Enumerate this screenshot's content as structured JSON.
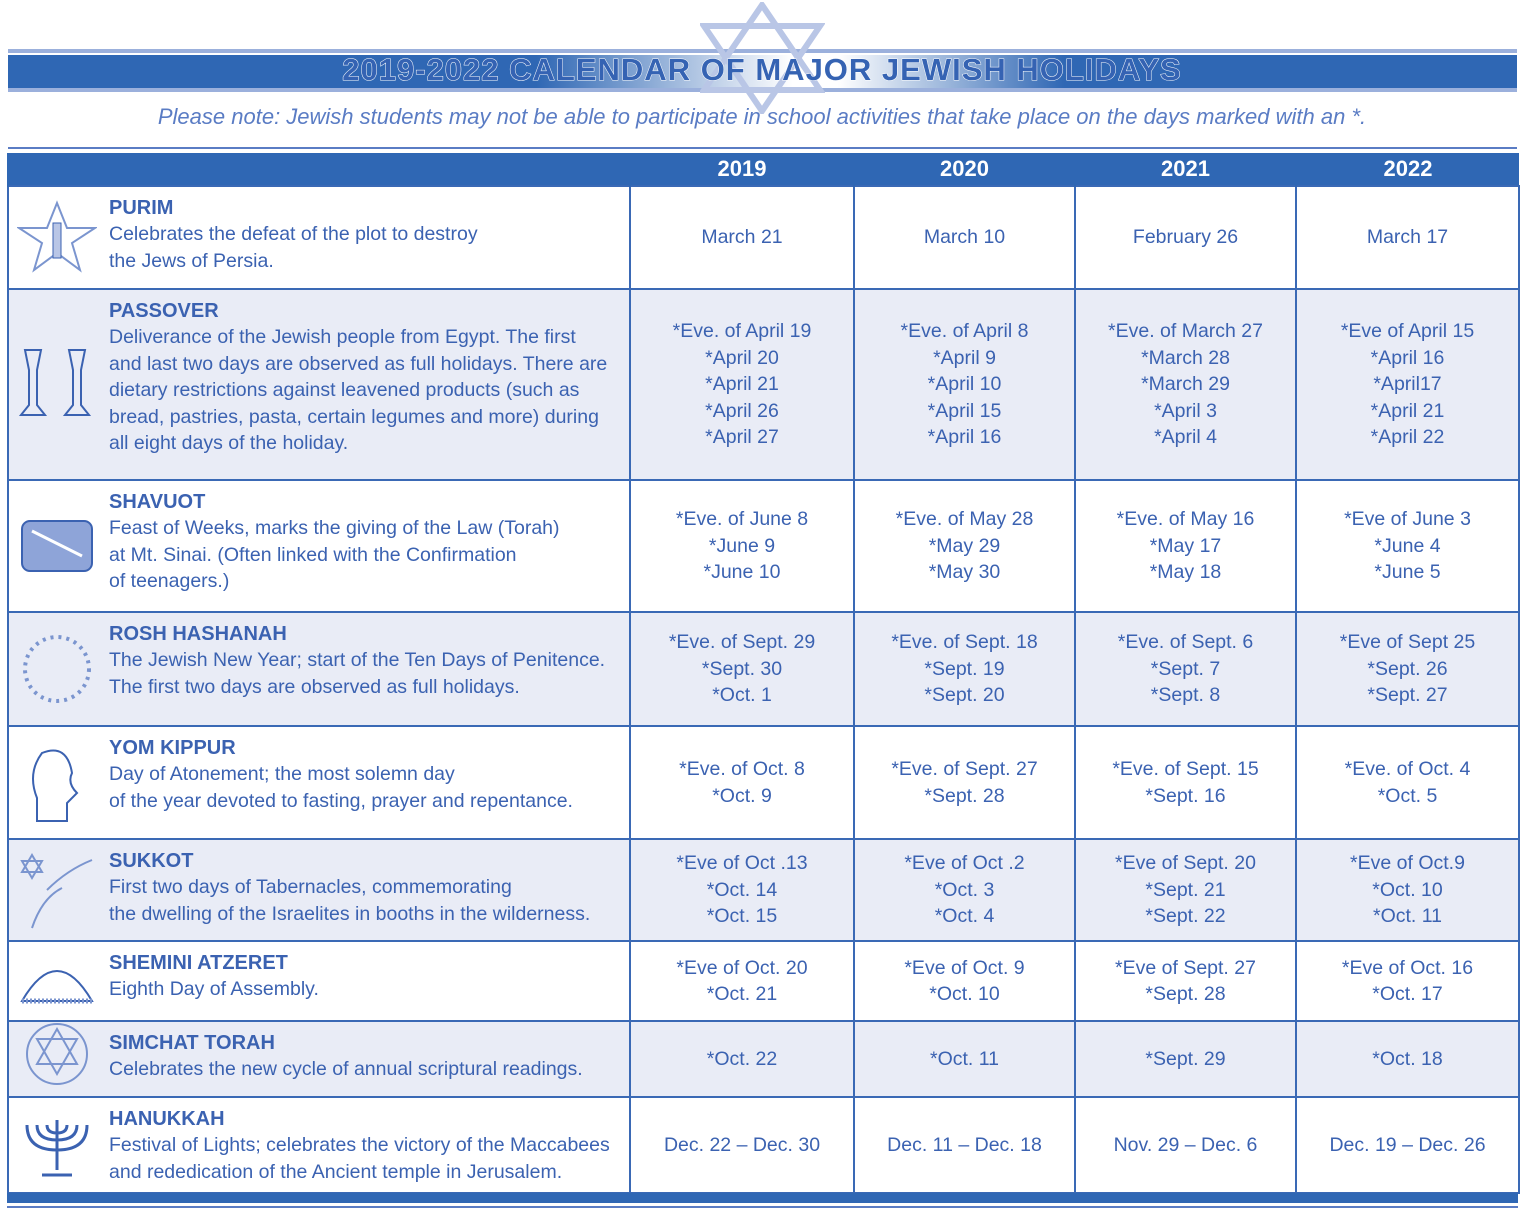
{
  "header": {
    "title": "2019-2022 CALENDAR OF MAJOR JEWISH HOLIDAYS",
    "note": "Please note: Jewish students may not be able to participate in school activities that take place on the days marked with an *."
  },
  "columns": [
    "",
    "2019",
    "2020",
    "2021",
    "2022"
  ],
  "colors": {
    "primary": "#2f67b4",
    "text": "#3b62b1",
    "row_shade": "#e9ecf6"
  },
  "holidays": [
    {
      "name": "PURIM",
      "icon": "star-candle-icon",
      "desc": [
        "Celebrates the defeat of the plot to destroy",
        "the Jews of Persia."
      ],
      "dates": [
        [
          "March 21"
        ],
        [
          "March 10"
        ],
        [
          "February  26"
        ],
        [
          "March 17"
        ]
      ]
    },
    {
      "name": "PASSOVER",
      "icon": "kiddush-cups-icon",
      "desc": [
        "Deliverance of the Jewish people from Egypt. The first",
        "and last two days are observed as full holidays. There are",
        "dietary restrictions against leavened products (such as",
        "bread, pastries, pasta, certain legumes and more) during",
        "all eight days of the holiday."
      ],
      "dates": [
        [
          "*Eve. of April 19",
          "*April 20",
          "*April 21",
          "*April 26",
          "*April 27"
        ],
        [
          "*Eve. of April 8",
          "*April 9",
          "*April 10",
          "*April 15",
          "*April 16"
        ],
        [
          "*Eve. of March 27",
          "*March 28",
          "*March 29",
          "*April 3",
          "*April 4"
        ],
        [
          "*Eve of April 15",
          "*April 16",
          "*April17",
          "*April 21",
          "*April 22"
        ]
      ]
    },
    {
      "name": "SHAVUOT",
      "icon": "torah-scroll-icon",
      "desc": [
        "Feast of Weeks, marks the giving of the Law (Torah)",
        "at Mt. Sinai. (Often linked with the Confirmation",
        "of teenagers.)"
      ],
      "dates": [
        [
          "*Eve. of June 8",
          "*June 9",
          "*June 10"
        ],
        [
          "*Eve. of May 28",
          "*May 29",
          "*May 30"
        ],
        [
          "*Eve. of May 16",
          "*May 17",
          "*May 18"
        ],
        [
          "*Eve of June 3",
          "*June 4",
          "*June 5"
        ]
      ]
    },
    {
      "name": "ROSH HASHANAH",
      "icon": "star-wreath-icon",
      "desc": [
        "The Jewish New Year; start of the Ten Days of Penitence.",
        "The first two days are observed as full holidays."
      ],
      "dates": [
        [
          "*Eve. of Sept. 29",
          "*Sept. 30",
          "*Oct. 1"
        ],
        [
          "*Eve. of Sept. 18",
          "*Sept. 19",
          "*Sept. 20"
        ],
        [
          "*Eve. of Sept. 6",
          "*Sept. 7",
          "*Sept. 8"
        ],
        [
          "*Eve of Sept 25",
          "*Sept. 26",
          "*Sept. 27"
        ]
      ]
    },
    {
      "name": "YOM KIPPUR",
      "icon": "praying-man-icon",
      "desc": [
        "Day of Atonement; the most solemn day",
        "of the year devoted to fasting, prayer and repentance."
      ],
      "dates": [
        [
          "*Eve. of Oct. 8",
          "*Oct. 9"
        ],
        [
          "*Eve. of Sept. 27",
          "*Sept. 28"
        ],
        [
          "*Eve. of Sept. 15",
          "*Sept. 16"
        ],
        [
          "*Eve. of Oct. 4",
          "*Oct. 5"
        ]
      ]
    },
    {
      "name": "SUKKOT",
      "icon": "star-branch-icon",
      "desc": [
        "First two days of Tabernacles, commemorating",
        "the dwelling of the Israelites in booths in the wilderness."
      ],
      "dates": [
        [
          "*Eve of Oct .13",
          "*Oct. 14",
          "*Oct. 15"
        ],
        [
          "*Eve of Oct .2",
          "*Oct. 3",
          "*Oct. 4"
        ],
        [
          "*Eve of Sept. 20",
          "*Sept. 21",
          "*Sept. 22"
        ],
        [
          "*Eve of Oct.9",
          "*Oct. 10",
          "*Oct. 11"
        ]
      ]
    },
    {
      "name": "SHEMINI ATZERET",
      "icon": "kippah-icon",
      "desc": [
        "Eighth Day of Assembly."
      ],
      "dates": [
        [
          "*Eve of Oct. 20",
          "*Oct. 21"
        ],
        [
          "*Eve of Oct. 9",
          "*Oct. 10"
        ],
        [
          "*Eve of Sept. 27",
          "*Sept.  28"
        ],
        [
          "*Eve of Oct. 16",
          "*Oct. 17"
        ]
      ]
    },
    {
      "name": "SIMCHAT TORAH",
      "icon": "star-torah-icon",
      "desc": [
        "Celebrates the new cycle of annual scriptural readings."
      ],
      "dates": [
        [
          "*Oct. 22"
        ],
        [
          "*Oct. 11"
        ],
        [
          "*Sept. 29"
        ],
        [
          "*Oct. 18"
        ]
      ]
    },
    {
      "name": "HANUKKAH",
      "icon": "menorah-icon",
      "desc": [
        "Festival of Lights; celebrates the victory of the Maccabees",
        "and rededication of the Ancient temple in Jerusalem."
      ],
      "dates": [
        [
          "Dec. 22 – Dec. 30"
        ],
        [
          "Dec. 11 – Dec. 18"
        ],
        [
          "Nov. 29 – Dec. 6"
        ],
        [
          "Dec. 19 – Dec. 26"
        ]
      ]
    }
  ]
}
